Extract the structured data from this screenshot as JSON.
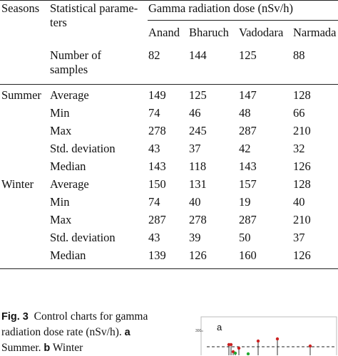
{
  "table": {
    "header": {
      "seasons": "Seasons",
      "param_line1": "Statistical parame-",
      "param_line2": "ters",
      "gamma": "Gamma radiation dose (nSv/h)",
      "locations": [
        "Anand",
        "Bharuch",
        "Vadodara",
        "Narmada"
      ]
    },
    "samples": {
      "label_line1": "Number of",
      "label_line2": "samples",
      "values": [
        "82",
        "144",
        "125",
        "88"
      ]
    },
    "rows": [
      {
        "season": "Summer",
        "param": "Average",
        "values": [
          "149",
          "125",
          "147",
          "128"
        ]
      },
      {
        "season": "",
        "param": "Min",
        "values": [
          "74",
          "46",
          "48",
          "66"
        ]
      },
      {
        "season": "",
        "param": "Max",
        "values": [
          "278",
          "245",
          "287",
          "210"
        ]
      },
      {
        "season": "",
        "param": "Std. deviation",
        "values": [
          "43",
          "37",
          "42",
          "32"
        ]
      },
      {
        "season": "",
        "param": "Median",
        "values": [
          "143",
          "118",
          "143",
          "126"
        ]
      },
      {
        "season": "Winter",
        "param": "Average",
        "values": [
          "150",
          "131",
          "157",
          "128"
        ]
      },
      {
        "season": "",
        "param": "Min",
        "values": [
          "74",
          "40",
          "19",
          "40"
        ]
      },
      {
        "season": "",
        "param": "Max",
        "values": [
          "287",
          "278",
          "287",
          "210"
        ]
      },
      {
        "season": "",
        "param": "Std. deviation",
        "values": [
          "43",
          "39",
          "50",
          "37"
        ]
      },
      {
        "season": "",
        "param": "Median",
        "values": [
          "139",
          "126",
          "160",
          "126"
        ]
      }
    ]
  },
  "caption": {
    "fig_label": "Fig. 3",
    "text_line1": "Control charts for gamma",
    "text_line2_a": "radiation dose rate (nSv/h).",
    "a_label": "a",
    "text_line3_a": "Summer.",
    "b_label": "b",
    "text_line3_b": "Winter"
  },
  "thumbnail": {
    "panel_label": "a",
    "y_tick": "300",
    "colors": {
      "stem": "#333333",
      "red": "#cc2222",
      "green": "#22aa33",
      "border": "#bbbbbb",
      "dash": "#222222"
    }
  }
}
